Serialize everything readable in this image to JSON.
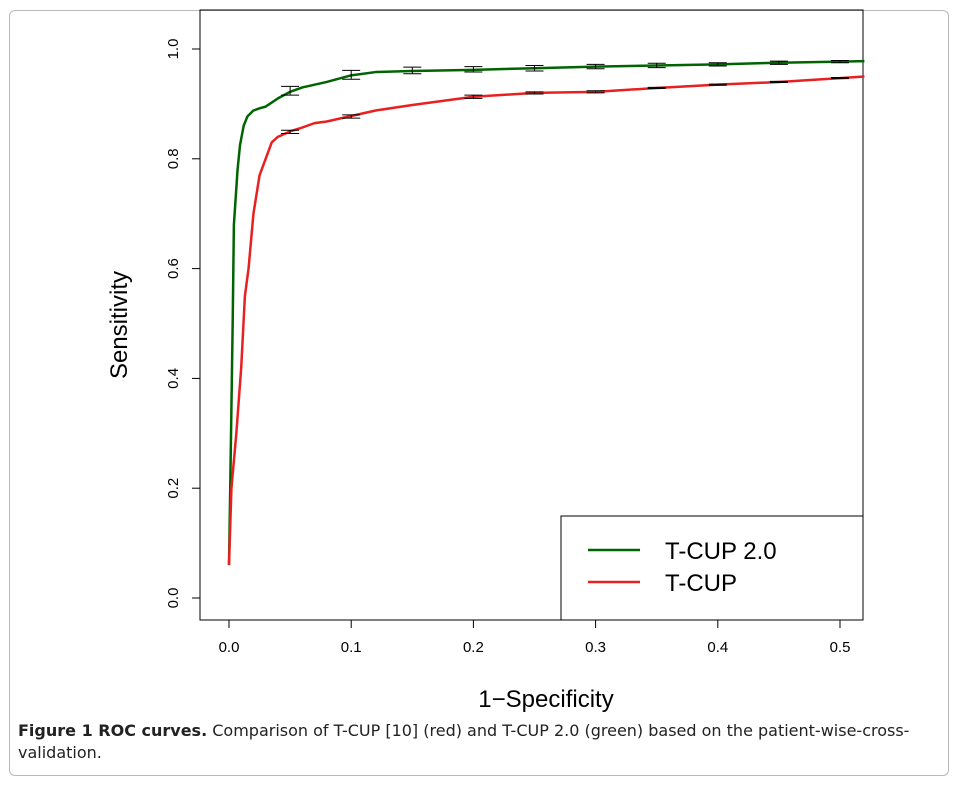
{
  "chart_data": {
    "type": "line",
    "xlabel": "1−Specificity",
    "ylabel": "Sensitivity",
    "xlim": [
      0.0,
      0.52
    ],
    "ylim": [
      0.0,
      1.0
    ],
    "x_ticks": [
      "0.0",
      "0.1",
      "0.2",
      "0.3",
      "0.4",
      "0.5"
    ],
    "y_ticks": [
      "0.0",
      "0.2",
      "0.4",
      "0.6",
      "0.8",
      "1.0"
    ],
    "legend_position": "bottom-right",
    "series": [
      {
        "name": "T-CUP 2.0",
        "color": "#006400",
        "points": [
          [
            0.0,
            0.06
          ],
          [
            0.001,
            0.2
          ],
          [
            0.003,
            0.5
          ],
          [
            0.004,
            0.68
          ],
          [
            0.007,
            0.78
          ],
          [
            0.009,
            0.825
          ],
          [
            0.012,
            0.86
          ],
          [
            0.015,
            0.877
          ],
          [
            0.02,
            0.888
          ],
          [
            0.025,
            0.892
          ],
          [
            0.03,
            0.895
          ],
          [
            0.04,
            0.91
          ],
          [
            0.05,
            0.922
          ],
          [
            0.06,
            0.93
          ],
          [
            0.08,
            0.94
          ],
          [
            0.1,
            0.952
          ],
          [
            0.12,
            0.958
          ],
          [
            0.15,
            0.96
          ],
          [
            0.2,
            0.962
          ],
          [
            0.25,
            0.965
          ],
          [
            0.3,
            0.968
          ],
          [
            0.35,
            0.97
          ],
          [
            0.4,
            0.972
          ],
          [
            0.45,
            0.975
          ],
          [
            0.5,
            0.977
          ],
          [
            0.52,
            0.978
          ]
        ],
        "error_bars": [
          {
            "x": 0.05,
            "y": 0.924,
            "err": 0.008
          },
          {
            "x": 0.1,
            "y": 0.953,
            "err": 0.008
          },
          {
            "x": 0.15,
            "y": 0.961,
            "err": 0.006
          },
          {
            "x": 0.2,
            "y": 0.963,
            "err": 0.005
          },
          {
            "x": 0.25,
            "y": 0.965,
            "err": 0.005
          },
          {
            "x": 0.3,
            "y": 0.968,
            "err": 0.004
          },
          {
            "x": 0.35,
            "y": 0.97,
            "err": 0.004
          },
          {
            "x": 0.4,
            "y": 0.972,
            "err": 0.003
          },
          {
            "x": 0.45,
            "y": 0.975,
            "err": 0.003
          },
          {
            "x": 0.5,
            "y": 0.977,
            "err": 0.002
          }
        ]
      },
      {
        "name": "T-CUP",
        "color": "#e82020",
        "points": [
          [
            0.0,
            0.06
          ],
          [
            0.002,
            0.2
          ],
          [
            0.006,
            0.3
          ],
          [
            0.01,
            0.42
          ],
          [
            0.013,
            0.55
          ],
          [
            0.016,
            0.6
          ],
          [
            0.02,
            0.7
          ],
          [
            0.025,
            0.77
          ],
          [
            0.03,
            0.8
          ],
          [
            0.035,
            0.83
          ],
          [
            0.04,
            0.84
          ],
          [
            0.05,
            0.85
          ],
          [
            0.06,
            0.857
          ],
          [
            0.07,
            0.865
          ],
          [
            0.08,
            0.868
          ],
          [
            0.1,
            0.878
          ],
          [
            0.12,
            0.888
          ],
          [
            0.15,
            0.898
          ],
          [
            0.2,
            0.913
          ],
          [
            0.25,
            0.92
          ],
          [
            0.3,
            0.922
          ],
          [
            0.35,
            0.929
          ],
          [
            0.4,
            0.935
          ],
          [
            0.45,
            0.94
          ],
          [
            0.5,
            0.947
          ],
          [
            0.52,
            0.95
          ]
        ],
        "error_bars": [
          {
            "x": 0.05,
            "y": 0.849,
            "err": 0.003
          },
          {
            "x": 0.1,
            "y": 0.877,
            "err": 0.003
          },
          {
            "x": 0.2,
            "y": 0.913,
            "err": 0.003
          },
          {
            "x": 0.25,
            "y": 0.92,
            "err": 0.002
          },
          {
            "x": 0.3,
            "y": 0.922,
            "err": 0.002
          },
          {
            "x": 0.35,
            "y": 0.929,
            "err": 0.001
          },
          {
            "x": 0.4,
            "y": 0.935,
            "err": 0.001
          },
          {
            "x": 0.45,
            "y": 0.94,
            "err": 0.001
          },
          {
            "x": 0.5,
            "y": 0.947,
            "err": 0.001
          }
        ]
      }
    ]
  },
  "caption": {
    "label": "Figure 1 ROC curves.",
    "text": " Comparison of T-CUP [10] (red) and T-CUP 2.0 (green) based on the patient-wise-cross-validation."
  }
}
